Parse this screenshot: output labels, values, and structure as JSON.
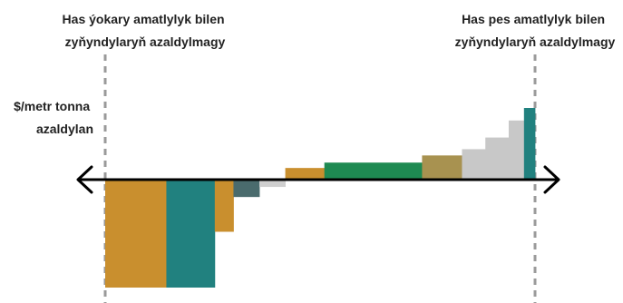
{
  "chart_data": {
    "type": "bar",
    "subtype": "marginal-abatement-cost-curve",
    "ylabel_lines": [
      "$/metr tonna",
      "azaldylan"
    ],
    "left_annotation_lines": [
      "Has ýokary amatlylyk bilen",
      "zyňyndylaryň azaldylmagy"
    ],
    "right_annotation_lines": [
      "Has pes amatlylyk bilen",
      "zyňyndylaryň azaldylmagy"
    ],
    "y_range": [
      -118,
      80
    ],
    "x_range": [
      0,
      100
    ],
    "bars": [
      {
        "width": 14.4,
        "value": -118,
        "color": "#c98f2e"
      },
      {
        "width": 11.4,
        "value": -118,
        "color": "#21817f"
      },
      {
        "width": 4.4,
        "value": -57,
        "color": "#c98f2e"
      },
      {
        "width": 6.1,
        "value": -19,
        "color": "#4a6b6d"
      },
      {
        "width": 6.1,
        "value": -8,
        "color": "#cfcfcf"
      },
      {
        "width": 9.2,
        "value": 13,
        "color": "#c98f2e"
      },
      {
        "width": 23.0,
        "value": 19,
        "color": "#1e8a52"
      },
      {
        "width": 9.4,
        "value": 27,
        "color": "#a89250"
      },
      {
        "width": 5.5,
        "value": 34,
        "color": "#c8c8c8"
      },
      {
        "width": 5.5,
        "value": 47,
        "color": "#c8c8c8"
      },
      {
        "width": 3.6,
        "value": 66,
        "color": "#c8c8c8"
      },
      {
        "width": 2.6,
        "value": 80,
        "color": "#21817f"
      }
    ],
    "colors": {
      "axis": "#000000",
      "guide_line": "#9a9a9a",
      "text": "#222222"
    }
  }
}
